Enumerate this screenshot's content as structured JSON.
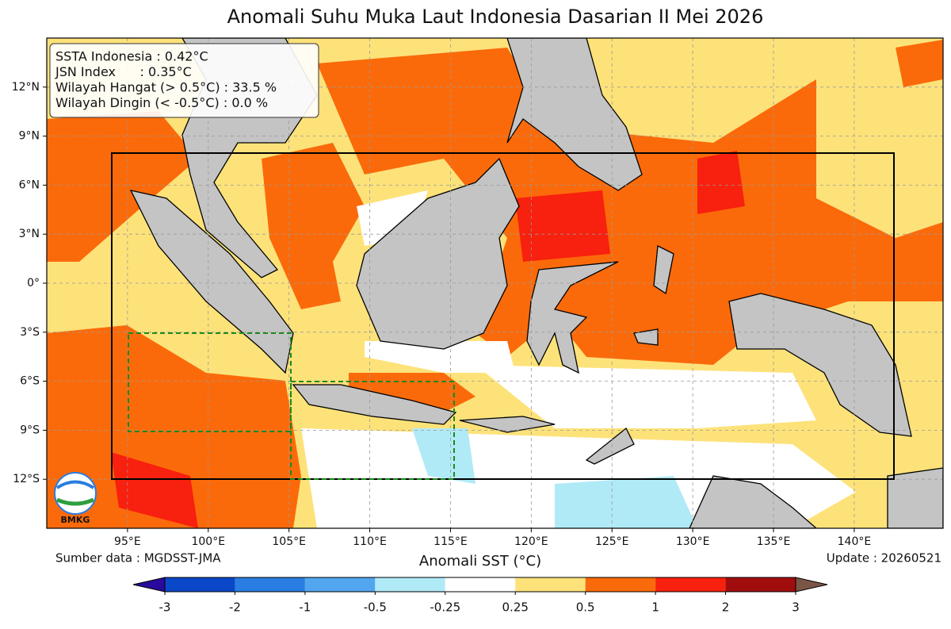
{
  "title": "Anomali Suhu Muka Laut Indonesia Dasarian II Mei 2026",
  "info": [
    "SSTA Indonesia : 0.42°C",
    "JSN Index      : 0.35°C",
    "Wilayah Hangat (> 0.5°C) : 33.5 %",
    "Wilayah Dingin (< -0.5°C) : 0.0 %"
  ],
  "map": {
    "xlim": [
      90,
      145.5
    ],
    "ylim": [
      -15,
      15
    ],
    "grid": true,
    "xticks": [
      {
        "value": 95,
        "label": "95°E"
      },
      {
        "value": 100,
        "label": "100°E"
      },
      {
        "value": 105,
        "label": "105°E"
      },
      {
        "value": 110,
        "label": "110°E"
      },
      {
        "value": 115,
        "label": "115°E"
      },
      {
        "value": 120,
        "label": "120°E"
      },
      {
        "value": 125,
        "label": "125°E"
      },
      {
        "value": 130,
        "label": "130°E"
      },
      {
        "value": 135,
        "label": "135°E"
      },
      {
        "value": 140,
        "label": "140°E"
      }
    ],
    "yticks": [
      {
        "value": 12,
        "label": "12°N"
      },
      {
        "value": 9,
        "label": "9°N"
      },
      {
        "value": 6,
        "label": "6°N"
      },
      {
        "value": 3,
        "label": "3°N"
      },
      {
        "value": 0,
        "label": "0°"
      },
      {
        "value": -3,
        "label": "3°S"
      },
      {
        "value": -6,
        "label": "6°S"
      },
      {
        "value": -9,
        "label": "9°S"
      },
      {
        "value": -12,
        "label": "12°S"
      }
    ]
  },
  "logo": "BMKG",
  "source": "Sumber data : MGDSST-JMA",
  "update": "Update : 20260521",
  "colorbar": {
    "label": "Anomali SST (°C)",
    "ticks": [
      -3,
      -2,
      -1,
      -0.5,
      -0.25,
      0.25,
      0.5,
      1,
      2,
      3
    ],
    "colors": [
      "#0b47c9",
      "#2a7de2",
      "#52a6ef",
      "#b0eaf7",
      "#ffffff",
      "#fde27a",
      "#fb6a0a",
      "#f8200e",
      "#a10d0d"
    ],
    "under": "#2a0a9c",
    "over": "#7b5546"
  }
}
